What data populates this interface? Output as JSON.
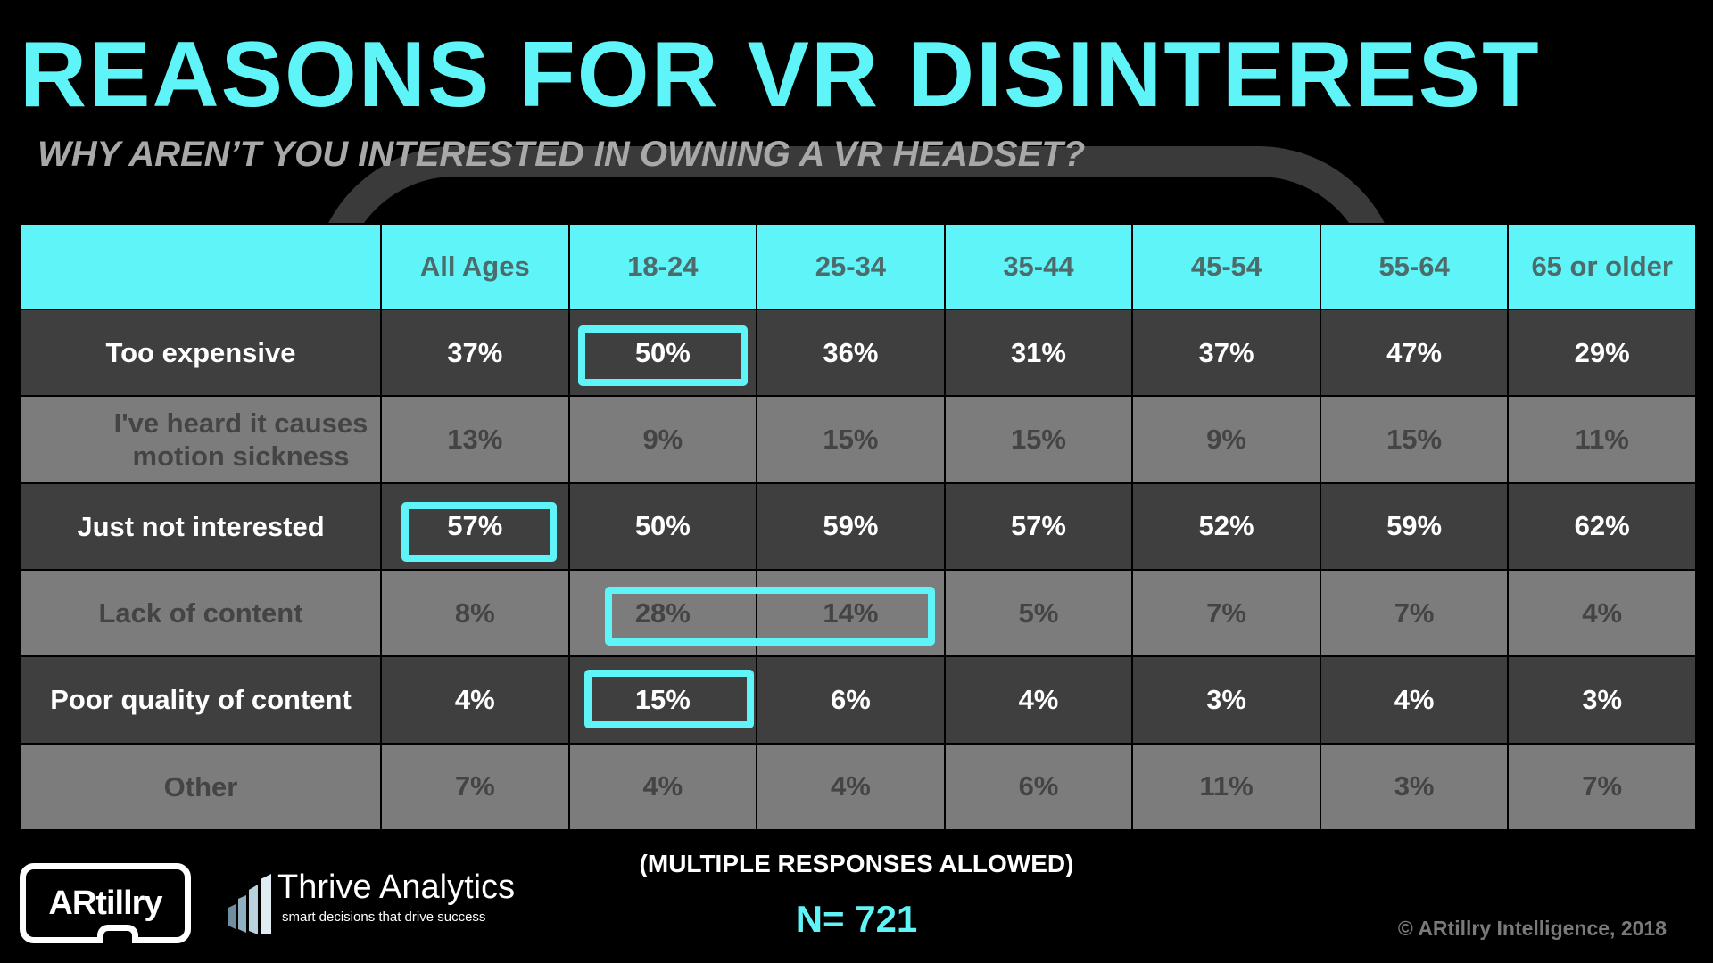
{
  "header": {
    "title": "REASONS FOR VR DISINTEREST",
    "subtitle": "WHY AREN’T YOU INTERESTED IN OWNING A VR HEADSET?"
  },
  "chart_data": {
    "type": "table",
    "columns": [
      "",
      "All Ages",
      "18-24",
      "25-34",
      "35-44",
      "45-54",
      "55-64",
      "65 or older"
    ],
    "rows": [
      {
        "label": "Too expensive",
        "values": [
          "37%",
          "50%",
          "36%",
          "31%",
          "37%",
          "47%",
          "29%"
        ]
      },
      {
        "label": "I've heard it causes motion sickness",
        "values": [
          "13%",
          "9%",
          "15%",
          "15%",
          "9%",
          "15%",
          "11%"
        ]
      },
      {
        "label": "Just not interested",
        "values": [
          "57%",
          "50%",
          "59%",
          "57%",
          "52%",
          "59%",
          "62%"
        ]
      },
      {
        "label": "Lack of content",
        "values": [
          "8%",
          "28%",
          "14%",
          "5%",
          "7%",
          "7%",
          "4%"
        ]
      },
      {
        "label": "Poor quality of content",
        "values": [
          "4%",
          "15%",
          "6%",
          "4%",
          "3%",
          "4%",
          "3%"
        ]
      },
      {
        "label": "Other",
        "values": [
          "7%",
          "4%",
          "4%",
          "6%",
          "11%",
          "3%",
          "7%"
        ]
      }
    ],
    "highlighted_cells": [
      {
        "row": "Too expensive",
        "columns": [
          "18-24"
        ]
      },
      {
        "row": "Just not interested",
        "columns": [
          "All Ages"
        ]
      },
      {
        "row": "Lack of content",
        "columns": [
          "18-24",
          "25-34"
        ]
      },
      {
        "row": "Poor quality of content",
        "columns": [
          "18-24"
        ]
      }
    ],
    "colors": {
      "header_bg": "#5ff4f7",
      "highlight": "#5ff4f7",
      "dark_row": "#3f3f3f",
      "light_row": "#7c7c7c"
    }
  },
  "footer": {
    "note": "(MULTIPLE RESPONSES ALLOWED)",
    "sample_size": "N= 721",
    "copyright": "© ARtillry Intelligence, 2018"
  },
  "logos": {
    "artillry": "ARtillry",
    "thrive_name": "Thrive Analytics",
    "thrive_tagline": "smart decisions that drive success"
  }
}
